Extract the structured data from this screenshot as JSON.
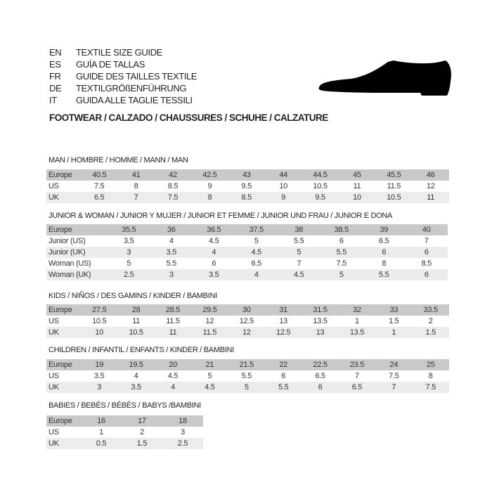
{
  "header": {
    "languages": [
      {
        "code": "EN",
        "text": "TEXTILE SIZE GUIDE"
      },
      {
        "code": "ES",
        "text": "GUÍA DE TALLAS"
      },
      {
        "code": "FR",
        "text": "GUIDE DES TAILLES TEXTILE"
      },
      {
        "code": "DE",
        "text": "TEXTILGRÖßENFÜHRUNG"
      },
      {
        "code": "IT",
        "text": "GUIDA ALLE TAGLIE TESSILI"
      }
    ],
    "subtitle": "FOOTWEAR / CALZADO / CHAUSSURES / SCHUHE / CALZATURE",
    "icon": "shoe-icon",
    "colors": {
      "header_row": "#c9c9c9",
      "alt_row": "#ececec"
    }
  },
  "tables": [
    {
      "title": "MAN / HOMBRE / HOMME / MANN / MAN",
      "rows": [
        {
          "label": "Europe",
          "values": [
            "40.5",
            "41",
            "42",
            "42.5",
            "43",
            "44",
            "44.5",
            "45",
            "45.5",
            "46"
          ]
        },
        {
          "label": "US",
          "values": [
            "7.5",
            "8",
            "8.5",
            "9",
            "9.5",
            "10",
            "10.5",
            "11",
            "11.5",
            "12"
          ]
        },
        {
          "label": "UK",
          "values": [
            "6.5",
            "7",
            "7.5",
            "8",
            "8.5",
            "9",
            "9.5",
            "10",
            "10.5",
            "11"
          ]
        }
      ]
    },
    {
      "title": "JUNIOR & WOMAN / JUNIOR Y MUJER / JUNIOR ET FEMME / JUNIOR UND FRAU / JUNIOR E DONA",
      "rows": [
        {
          "label": "Europe",
          "values": [
            "35.5",
            "36",
            "36.5",
            "37.5",
            "38",
            "38.5",
            "39",
            "40"
          ]
        },
        {
          "label": "Junior (US)",
          "values": [
            "3.5",
            "4",
            "4.5",
            "5",
            "5.5",
            "6",
            "6.5",
            "7"
          ]
        },
        {
          "label": "Junior (UK)",
          "values": [
            "3",
            "3.5",
            "4",
            "4.5",
            "5",
            "5.5",
            "6",
            "6"
          ]
        },
        {
          "label": "Woman (US)",
          "values": [
            "5",
            "5.5",
            "6",
            "6.5",
            "7",
            "7.5",
            "8",
            "8.5"
          ]
        },
        {
          "label": "Woman (UK)",
          "values": [
            "2.5",
            "3",
            "3.5",
            "4",
            "4.5",
            "5",
            "5.5",
            "6"
          ]
        }
      ]
    },
    {
      "title": "KIDS / NIÑOS / DES GAMINS / KINDER / BAMBINI",
      "rows": [
        {
          "label": "Europe",
          "values": [
            "27.5",
            "28",
            "28.5",
            "29.5",
            "30",
            "31",
            "31.5",
            "32",
            "33",
            "33.5"
          ]
        },
        {
          "label": "US",
          "values": [
            "10.5",
            "11",
            "11.5",
            "12",
            "12.5",
            "13",
            "13.5",
            "1",
            "1.5",
            "2"
          ]
        },
        {
          "label": "UK",
          "values": [
            "10",
            "10.5",
            "11",
            "11.5",
            "12",
            "12.5",
            "13",
            "13.5",
            "1",
            "1.5"
          ]
        }
      ]
    },
    {
      "title": "CHILDREN / INFANTIL / ENFANTS / KINDER / BAMBINI",
      "rows": [
        {
          "label": "Europe",
          "values": [
            "19",
            "19.5",
            "20",
            "21",
            "21.5",
            "22",
            "22.5",
            "23.5",
            "24",
            "25"
          ]
        },
        {
          "label": "US",
          "values": [
            "3.5",
            "4",
            "4.5",
            "5",
            "5.5",
            "6",
            "6.5",
            "7",
            "7.5",
            "8"
          ]
        },
        {
          "label": "UK",
          "values": [
            "3",
            "3.5",
            "4",
            "4.5",
            "5",
            "5.5",
            "6",
            "6.5",
            "7",
            "7.5"
          ]
        }
      ]
    },
    {
      "title": "BABIES  / BEBÉS / BÉBÉS / BABYS /BAMBINI",
      "rows": [
        {
          "label": "Europe",
          "values": [
            "16",
            "17",
            "18"
          ]
        },
        {
          "label": "US",
          "values": [
            "1",
            "2",
            "3"
          ]
        },
        {
          "label": "UK",
          "values": [
            "0.5",
            "1.5",
            "2.5"
          ]
        }
      ]
    }
  ]
}
